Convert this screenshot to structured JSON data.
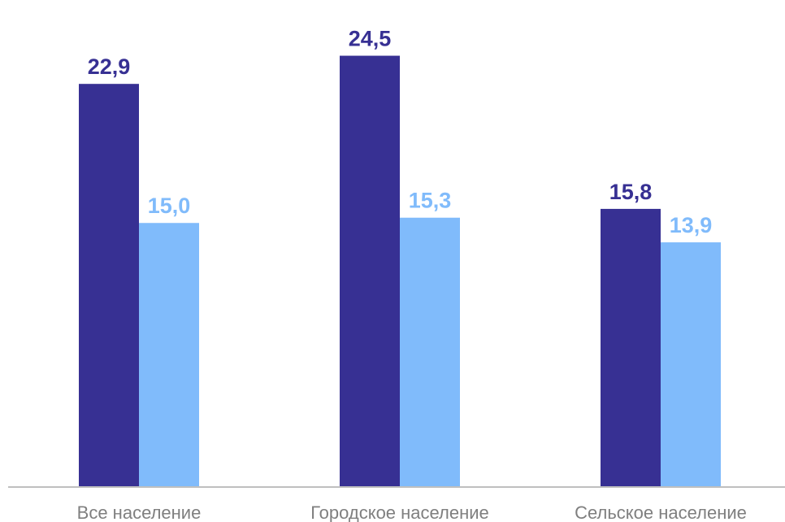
{
  "chart_data": {
    "type": "bar",
    "categories": [
      "Все население",
      "Городское население",
      "Сельское население"
    ],
    "series": [
      {
        "values": [
          22.9,
          24.5,
          15.8
        ],
        "labels": [
          "22,9",
          "24,5",
          "15,8"
        ],
        "color": "#373093"
      },
      {
        "values": [
          15.0,
          15.3,
          13.9
        ],
        "labels": [
          "15,0",
          "15,3",
          "13,9"
        ],
        "color": "#80bbfb"
      }
    ],
    "ylim": [
      0,
      27.25
    ],
    "title": "",
    "xlabel": "",
    "ylabel": "",
    "grid": false,
    "axis_color": "#bfbfbf"
  }
}
